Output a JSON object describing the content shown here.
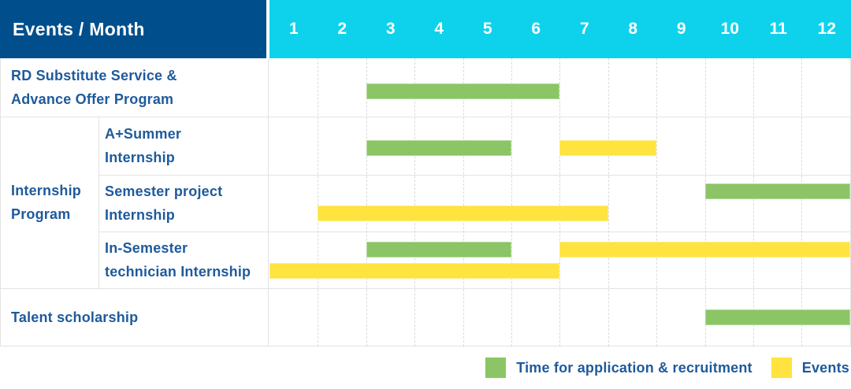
{
  "header": {
    "corner_label": "Events / Month",
    "months": [
      "1",
      "2",
      "3",
      "4",
      "5",
      "6",
      "7",
      "8",
      "9",
      "10",
      "11",
      "12"
    ]
  },
  "group": {
    "label": "Internship Program"
  },
  "rows": [
    {
      "lines": [
        "RD Substitute Service &",
        "Advance Offer Program"
      ]
    },
    {
      "lines": [
        "A+Summer",
        "Internship"
      ]
    },
    {
      "lines": [
        "Semester project",
        "Internship"
      ]
    },
    {
      "lines": [
        "In-Semester",
        "technician Internship"
      ]
    },
    {
      "lines": [
        "Talent scholarship"
      ]
    }
  ],
  "legend": {
    "items": [
      {
        "swatch": "green",
        "label": "Time for application & recruitment"
      },
      {
        "swatch": "yellow",
        "label": "Events"
      }
    ]
  },
  "colors": {
    "navy": "#004f8c",
    "cyan": "#0ed2ec",
    "green": "#8bc566",
    "yellow": "#ffe33e",
    "label_blue": "#1e5a9c"
  },
  "chart_data": {
    "type": "bar",
    "variant": "gantt-schedule",
    "title": "Events / Month",
    "xlabel": "Month",
    "x_ticks": [
      1,
      2,
      3,
      4,
      5,
      6,
      7,
      8,
      9,
      10,
      11,
      12
    ],
    "x_range": [
      1,
      12
    ],
    "legend_position": "bottom-right",
    "series_legend": [
      "Time for application & recruitment",
      "Events"
    ],
    "rows": [
      {
        "label": "RD Substitute Service & Advance Offer Program",
        "group": "",
        "bars": [
          {
            "series": "Time for application & recruitment",
            "color": "green",
            "start_month": 3,
            "end_month": 6,
            "lane": 0
          }
        ]
      },
      {
        "label": "A+Summer Internship",
        "group": "Internship Program",
        "bars": [
          {
            "series": "Time for application & recruitment",
            "color": "green",
            "start_month": 3,
            "end_month": 5,
            "lane": 0
          },
          {
            "series": "Events",
            "color": "yellow",
            "start_month": 7,
            "end_month": 8,
            "lane": 0
          }
        ]
      },
      {
        "label": "Semester project Internship",
        "group": "Internship Program",
        "bars": [
          {
            "series": "Time for application & recruitment",
            "color": "green",
            "start_month": 10,
            "end_month": 12,
            "lane": 0
          },
          {
            "series": "Events",
            "color": "yellow",
            "start_month": 2,
            "end_month": 7,
            "lane": 1
          }
        ]
      },
      {
        "label": "In-Semester technician Internship",
        "group": "Internship Program",
        "bars": [
          {
            "series": "Time for application & recruitment",
            "color": "green",
            "start_month": 3,
            "end_month": 5,
            "lane": 0
          },
          {
            "series": "Events",
            "color": "yellow",
            "start_month": 7,
            "end_month": 12,
            "lane": 0
          },
          {
            "series": "Events",
            "color": "yellow",
            "start_month": 1,
            "end_month": 6,
            "lane": 1
          }
        ]
      },
      {
        "label": "Talent scholarship",
        "group": "",
        "bars": [
          {
            "series": "Time for application & recruitment",
            "color": "green",
            "start_month": 10,
            "end_month": 12,
            "lane": 0
          }
        ]
      }
    ]
  }
}
